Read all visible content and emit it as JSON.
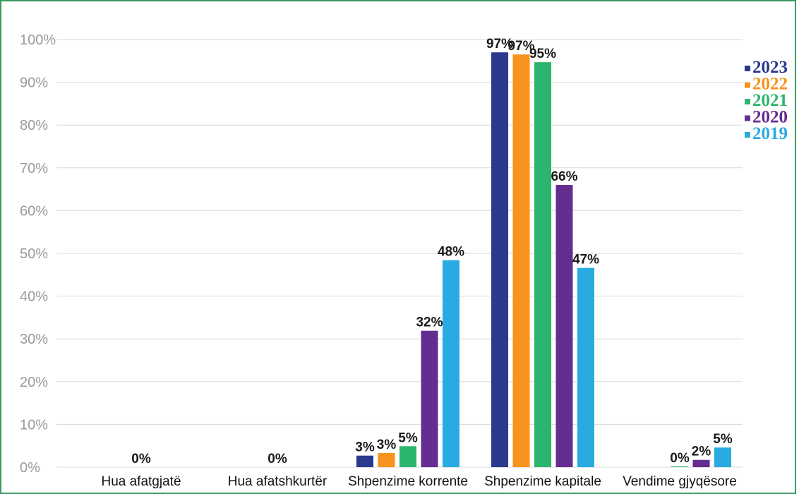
{
  "chart_data": {
    "type": "bar",
    "categories": [
      "Hua afatgjatë",
      "Hua afatshkurtër",
      "Shpenzime korrente",
      "Shpenzime kapitale",
      "Vendime gjyqësore"
    ],
    "y_ticks": [
      "0%",
      "10%",
      "20%",
      "30%",
      "40%",
      "50%",
      "60%",
      "70%",
      "80%",
      "90%",
      "100%"
    ],
    "ylim": [
      0,
      100
    ],
    "grid": true,
    "legend_position": "top-right",
    "series": [
      {
        "name": "2023",
        "color": "#2b3a8f",
        "values": [
          null,
          null,
          2.7,
          97.0,
          null
        ],
        "labels": [
          "",
          "",
          "3%",
          "97%",
          ""
        ]
      },
      {
        "name": "2022",
        "color": "#f7931e",
        "values": [
          null,
          null,
          3.3,
          96.5,
          null
        ],
        "labels": [
          "",
          "",
          "3%",
          "97%",
          ""
        ]
      },
      {
        "name": "2021",
        "color": "#2cb56e",
        "values": [
          0,
          0,
          4.9,
          94.7,
          0.2
        ],
        "labels": [
          "0%",
          "0%",
          "5%",
          "95%",
          "0%"
        ]
      },
      {
        "name": "2020",
        "color": "#652d90",
        "values": [
          null,
          null,
          31.9,
          66.0,
          1.7
        ],
        "labels": [
          "",
          "",
          "32%",
          "66%",
          "2%"
        ]
      },
      {
        "name": "2019",
        "color": "#29abe2",
        "values": [
          null,
          null,
          48.4,
          46.6,
          4.6
        ],
        "labels": [
          "",
          "",
          "48%",
          "47%",
          "5%"
        ]
      }
    ]
  }
}
